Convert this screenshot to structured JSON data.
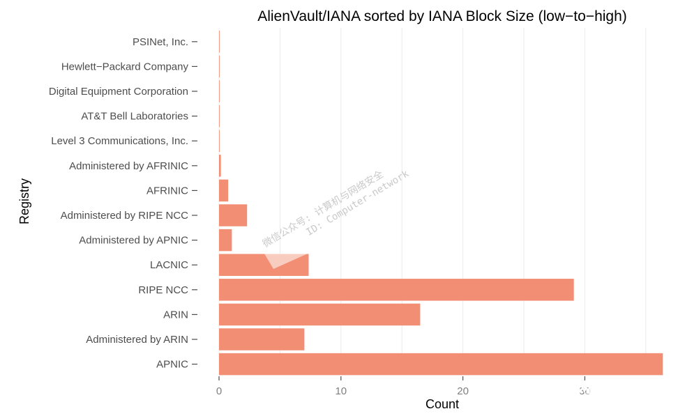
{
  "chart_data": {
    "type": "bar",
    "orientation": "horizontal",
    "title": "AlienVault/IANA sorted by IANA Block Size (low−to−high)",
    "xlabel": "Count",
    "ylabel": "Registry",
    "categories": [
      "PSINet, Inc.",
      "Hewlett−Packard Company",
      "Digital Equipment Corporation",
      "AT&T Bell Laboratories",
      "Level 3 Communications, Inc.",
      "Administered by AFRINIC",
      "AFRINIC",
      "Administered by RIPE NCC",
      "Administered by APNIC",
      "LACNIC",
      "RIPE NCC",
      "ARIN",
      "Administered by ARIN",
      "APNIC"
    ],
    "values": [
      0.05,
      0.05,
      0.05,
      0.05,
      0.05,
      0.15,
      0.75,
      2.3,
      1.05,
      7.35,
      29.1,
      16.5,
      7.0,
      36.4
    ],
    "xlim": [
      0,
      37.3
    ],
    "xticks": [
      0,
      10,
      20,
      30
    ],
    "bar_color": "#f28e74",
    "grid": true,
    "legend": "none"
  },
  "watermark": {
    "line1": "微信公众号: 计算机与网络安全",
    "line2": "ID: Computer-network",
    "brand": "计算机与网络安全"
  }
}
